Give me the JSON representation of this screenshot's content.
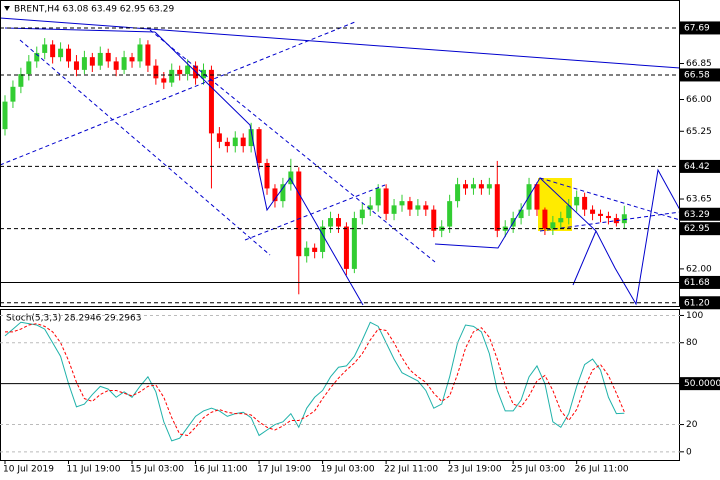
{
  "chart_data": [
    {
      "type": "candlestick",
      "title": "BRENT,H4  63.08 63.49 62.95 63.29",
      "categories": [
        "10 Jul 2019",
        null,
        null,
        null,
        null,
        null,
        null,
        null,
        "11 Jul 19:00",
        null,
        null,
        null,
        null,
        null,
        null,
        null,
        "15 Jul 03:00",
        null,
        null,
        null,
        null,
        null,
        null,
        null,
        "16 Jul 11:00",
        null,
        null,
        null,
        null,
        null,
        null,
        null,
        "17 Jul 19:00",
        null,
        null,
        null,
        null,
        null,
        null,
        null,
        "19 Jul 03:00",
        null,
        null,
        null,
        null,
        null,
        null,
        null,
        "22 Jul 11:00",
        null,
        null,
        null,
        null,
        null,
        null,
        null,
        "23 Jul 19:00",
        null,
        null,
        null,
        null,
        null,
        null,
        null,
        "25 Jul 03:00",
        null,
        null,
        null,
        null,
        null,
        null,
        null,
        "26 Jul 11:00",
        null,
        null,
        null,
        null,
        null,
        null
      ],
      "open": [
        65.3,
        65.95,
        66.3,
        66.6,
        66.9,
        67.1,
        67.3,
        67.0,
        67.2,
        66.9,
        66.7,
        67.0,
        66.8,
        67.1,
        66.9,
        66.7,
        67.0,
        66.9,
        67.3,
        66.8,
        66.5,
        66.4,
        66.7,
        66.6,
        66.8,
        66.5,
        66.7,
        65.2,
        65.0,
        64.9,
        65.1,
        64.9,
        65.3,
        64.5,
        63.9,
        63.6,
        64.0,
        64.3,
        62.3,
        62.5,
        62.4,
        63.0,
        63.2,
        63.0,
        62.0,
        63.2,
        63.4,
        63.5,
        63.9,
        63.3,
        63.5,
        63.6,
        63.4,
        63.5,
        63.4,
        62.9,
        63.0,
        63.6,
        64.0,
        63.9,
        64.0,
        63.9,
        64.0,
        62.9,
        63.0,
        63.2,
        63.4,
        64.0,
        63.4,
        62.95,
        63.1,
        63.2,
        63.5,
        63.7,
        63.4,
        63.3,
        63.25,
        63.2,
        63.08
      ],
      "high": [
        66.1,
        66.45,
        66.75,
        67.05,
        67.25,
        67.45,
        67.4,
        67.35,
        67.3,
        67.05,
        67.15,
        67.1,
        67.25,
        67.2,
        67.0,
        67.15,
        67.1,
        67.45,
        67.4,
        66.95,
        66.65,
        66.85,
        66.8,
        66.95,
        66.9,
        66.85,
        66.8,
        65.35,
        65.1,
        65.25,
        65.2,
        65.45,
        65.35,
        64.6,
        64.0,
        64.15,
        64.6,
        64.4,
        62.65,
        62.6,
        63.15,
        63.35,
        63.3,
        63.1,
        63.35,
        63.55,
        63.7,
        64.0,
        64.0,
        63.65,
        63.75,
        63.7,
        63.65,
        63.6,
        63.5,
        63.15,
        63.75,
        64.15,
        64.1,
        64.15,
        64.1,
        64.15,
        64.55,
        63.15,
        63.35,
        63.55,
        64.15,
        64.05,
        63.45,
        63.25,
        63.35,
        63.65,
        63.85,
        63.8,
        63.5,
        63.4,
        63.35,
        63.3,
        63.49
      ],
      "low": [
        65.15,
        65.8,
        66.15,
        66.45,
        66.75,
        66.95,
        66.85,
        66.9,
        66.75,
        66.55,
        66.6,
        66.65,
        66.7,
        66.75,
        66.55,
        66.6,
        66.75,
        66.75,
        66.65,
        66.35,
        66.25,
        66.3,
        66.45,
        66.45,
        66.35,
        66.35,
        63.9,
        64.85,
        64.75,
        64.75,
        64.75,
        64.75,
        64.35,
        63.75,
        63.45,
        63.45,
        63.85,
        61.4,
        62.15,
        62.25,
        62.25,
        62.85,
        62.85,
        61.85,
        61.9,
        63.05,
        63.25,
        63.35,
        63.15,
        63.15,
        63.35,
        63.25,
        63.25,
        63.25,
        62.75,
        62.75,
        62.85,
        63.45,
        63.75,
        63.75,
        63.75,
        63.75,
        62.75,
        62.75,
        62.85,
        63.05,
        63.25,
        63.25,
        62.8,
        62.8,
        62.95,
        63.05,
        63.35,
        63.25,
        63.15,
        63.1,
        63.05,
        63.0,
        62.95
      ],
      "close": [
        65.95,
        66.3,
        66.6,
        66.9,
        67.1,
        67.3,
        67.0,
        67.2,
        66.9,
        66.7,
        67.0,
        66.8,
        67.1,
        66.9,
        66.7,
        67.0,
        66.9,
        67.3,
        66.8,
        66.5,
        66.4,
        66.7,
        66.6,
        66.8,
        66.5,
        66.7,
        65.2,
        65.0,
        64.9,
        65.1,
        64.9,
        65.3,
        64.5,
        63.9,
        63.6,
        64.0,
        64.3,
        62.3,
        62.5,
        62.4,
        63.0,
        63.2,
        63.0,
        62.0,
        63.2,
        63.4,
        63.5,
        63.9,
        63.3,
        63.5,
        63.6,
        63.4,
        63.5,
        63.4,
        62.9,
        63.0,
        63.6,
        64.0,
        63.9,
        64.0,
        63.9,
        64.0,
        62.9,
        63.0,
        63.2,
        63.4,
        64.0,
        63.4,
        62.95,
        63.1,
        63.2,
        63.5,
        63.7,
        63.4,
        63.3,
        63.25,
        63.2,
        63.08,
        63.29
      ],
      "up_color": "#32cd32",
      "down_color": "#ff0000",
      "ylim": [
        61.1,
        68.35
      ],
      "yticks": [
        66.85,
        {
          "value": 66,
          "label": "66.00"
        },
        65.25,
        63.65,
        {
          "value": 62,
          "label": "62.00"
        }
      ],
      "levels": [
        67.69,
        66.58,
        64.42,
        62.95,
        {
          "value": 61.2,
          "label": "61.20"
        }
      ],
      "support": 61.68,
      "current_price": 63.29
    },
    {
      "type": "line",
      "title": "Stoch(5,3,3) 28.2946 29.2963",
      "series": [
        {
          "color": "#20b2aa",
          "values": [
            85,
            90,
            95,
            94,
            93,
            90,
            80,
            70,
            50,
            33,
            35,
            42,
            48,
            46,
            40,
            44,
            40,
            48,
            55,
            44,
            22,
            8,
            10,
            18,
            26,
            30,
            32,
            30,
            26,
            28,
            29,
            25,
            12,
            16,
            20,
            22,
            28,
            18,
            32,
            40,
            45,
            55,
            62,
            63,
            70,
            82,
            95,
            92,
            80,
            68,
            58,
            55,
            52,
            45,
            32,
            35,
            55,
            80,
            93,
            92,
            88,
            72,
            45,
            30,
            30,
            38,
            55,
            63,
            50,
            22,
            18,
            28,
            48,
            64,
            68,
            60,
            40,
            28,
            28.2946
          ]
        },
        {
          "color": "#ff0000",
          "dashed": true,
          "values": [
            88,
            88,
            90,
            93,
            94,
            92,
            88,
            80,
            67,
            51,
            39,
            37,
            42,
            45,
            45,
            43,
            41,
            44,
            48,
            49,
            40,
            25,
            13,
            12,
            18,
            25,
            29,
            31,
            29,
            28,
            28,
            27,
            22,
            18,
            16,
            19,
            23,
            23,
            26,
            30,
            39,
            47,
            54,
            60,
            65,
            72,
            82,
            90,
            89,
            80,
            69,
            60,
            55,
            51,
            43,
            37,
            41,
            57,
            76,
            88,
            91,
            84,
            68,
            49,
            35,
            33,
            41,
            52,
            56,
            45,
            30,
            23,
            31,
            47,
            60,
            64,
            56,
            43,
            29.2963
          ]
        }
      ],
      "ylim": [
        -6,
        104
      ],
      "yticks": [
        100,
        80,
        20,
        0
      ],
      "levels": [
        {
          "value": 50,
          "label": "50.0000"
        }
      ]
    }
  ]
}
